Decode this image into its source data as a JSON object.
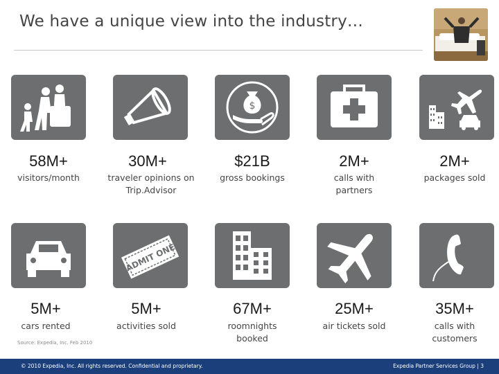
{
  "title": "We have a unique view into the industry…",
  "stats": [
    {
      "value": "58M+",
      "label": "visitors/month",
      "icon": "travelers-icon"
    },
    {
      "value": "30M+",
      "label": "traveler opinions on Trip.Advisor",
      "icon": "megaphone-icon"
    },
    {
      "value": "$21B",
      "label": "gross bookings",
      "icon": "money-bag-hand-icon"
    },
    {
      "value": "2M+",
      "label": "calls with partners",
      "icon": "first-aid-kit-icon"
    },
    {
      "value": "2M+",
      "label": "packages sold",
      "icon": "package-icon"
    },
    {
      "value": "5M+",
      "label": "cars rented",
      "icon": "car-icon"
    },
    {
      "value": "5M+",
      "label": "activities sold",
      "icon": "ticket-icon",
      "ticket_text": "ADMIT ONE"
    },
    {
      "value": "67M+",
      "label": "roomnights booked",
      "icon": "buildings-icon"
    },
    {
      "value": "25M+",
      "label": "air tickets sold",
      "icon": "airplane-icon"
    },
    {
      "value": "35M+",
      "label": "calls with customers",
      "icon": "telephone-icon"
    }
  ],
  "source": "Source: Expedia, Inc. Feb 2010",
  "footer": {
    "left": "© 2010 Expedia, Inc. All rights reserved. Confidential and proprietary.",
    "right": "Expedia Partner Services Group | 3"
  },
  "colors": {
    "tile": "#6d6e70",
    "footer": "#1b3f7a"
  }
}
